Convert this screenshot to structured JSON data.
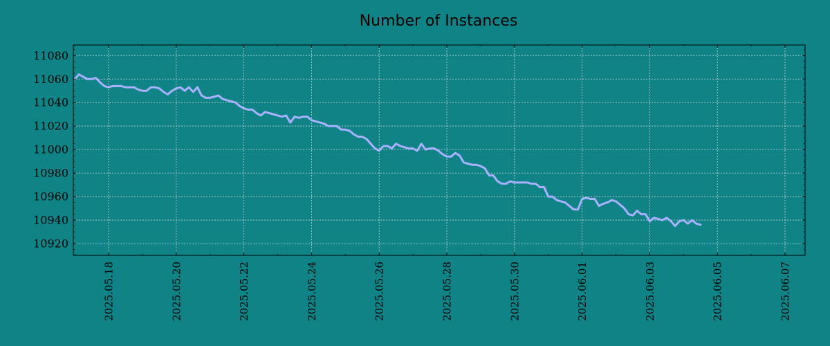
{
  "background_color": "#108386",
  "chart_data": {
    "type": "line",
    "title": "Number of Instances",
    "xlabel": "",
    "ylabel": "",
    "grid": true,
    "legend": "none",
    "x_range": [
      "2025.05.17",
      "2025.06.07"
    ],
    "ylim": [
      10910,
      11089
    ],
    "yticks": [
      10920,
      10940,
      10960,
      10980,
      11000,
      11020,
      11040,
      11060,
      11080
    ],
    "xticks": [
      "2025.05.18",
      "2025.05.20",
      "2025.05.22",
      "2025.05.24",
      "2025.05.26",
      "2025.05.28",
      "2025.05.30",
      "2025.06.01",
      "2025.06.03",
      "2025.06.05",
      "2025.06.07"
    ],
    "series": [
      {
        "color": "#a8b2ff",
        "points": [
          [
            "2025.05.17 00:00",
            11060
          ],
          [
            "2025.05.17 03:00",
            11064
          ],
          [
            "2025.05.17 06:00",
            11062
          ],
          [
            "2025.05.17 09:00",
            11060
          ],
          [
            "2025.05.17 12:00",
            11060
          ],
          [
            "2025.05.17 15:00",
            11061
          ],
          [
            "2025.05.17 18:00",
            11057
          ],
          [
            "2025.05.17 21:00",
            11054
          ],
          [
            "2025.05.18 00:00",
            11053
          ],
          [
            "2025.05.18 03:00",
            11054
          ],
          [
            "2025.05.18 06:00",
            11054
          ],
          [
            "2025.05.18 09:00",
            11054
          ],
          [
            "2025.05.18 12:00",
            11053
          ],
          [
            "2025.05.18 15:00",
            11053
          ],
          [
            "2025.05.18 18:00",
            11053
          ],
          [
            "2025.05.18 21:00",
            11051
          ],
          [
            "2025.05.19 00:00",
            11050
          ],
          [
            "2025.05.19 03:00",
            11050
          ],
          [
            "2025.05.19 06:00",
            11053
          ],
          [
            "2025.05.19 09:00",
            11053
          ],
          [
            "2025.05.19 12:00",
            11052
          ],
          [
            "2025.05.19 15:00",
            11049
          ],
          [
            "2025.05.19 18:00",
            11047
          ],
          [
            "2025.05.19 21:00",
            11050
          ],
          [
            "2025.05.20 00:00",
            11052
          ],
          [
            "2025.05.20 03:00",
            11053
          ],
          [
            "2025.05.20 06:00",
            11050
          ],
          [
            "2025.05.20 09:00",
            11053
          ],
          [
            "2025.05.20 12:00",
            11049
          ],
          [
            "2025.05.20 15:00",
            11053
          ],
          [
            "2025.05.20 18:00",
            11046
          ],
          [
            "2025.05.20 21:00",
            11044
          ],
          [
            "2025.05.21 00:00",
            11044
          ],
          [
            "2025.05.21 03:00",
            11045
          ],
          [
            "2025.05.21 06:00",
            11046
          ],
          [
            "2025.05.21 09:00",
            11043
          ],
          [
            "2025.05.21 12:00",
            11042
          ],
          [
            "2025.05.21 15:00",
            11041
          ],
          [
            "2025.05.21 18:00",
            11040
          ],
          [
            "2025.05.21 21:00",
            11037
          ],
          [
            "2025.05.22 00:00",
            11035
          ],
          [
            "2025.05.22 03:00",
            11034
          ],
          [
            "2025.05.22 06:00",
            11034
          ],
          [
            "2025.05.22 09:00",
            11031
          ],
          [
            "2025.05.22 12:00",
            11029
          ],
          [
            "2025.05.22 15:00",
            11032
          ],
          [
            "2025.05.22 18:00",
            11031
          ],
          [
            "2025.05.22 21:00",
            11030
          ],
          [
            "2025.05.23 00:00",
            11029
          ],
          [
            "2025.05.23 03:00",
            11028
          ],
          [
            "2025.05.23 06:00",
            11029
          ],
          [
            "2025.05.23 09:00",
            11023
          ],
          [
            "2025.05.23 12:00",
            11028
          ],
          [
            "2025.05.23 15:00",
            11027
          ],
          [
            "2025.05.23 18:00",
            11028
          ],
          [
            "2025.05.23 21:00",
            11028
          ],
          [
            "2025.05.24 00:00",
            11025
          ],
          [
            "2025.05.24 03:00",
            11024
          ],
          [
            "2025.05.24 06:00",
            11023
          ],
          [
            "2025.05.24 09:00",
            11022
          ],
          [
            "2025.05.24 12:00",
            11020
          ],
          [
            "2025.05.24 15:00",
            11020
          ],
          [
            "2025.05.24 18:00",
            11020
          ],
          [
            "2025.05.24 21:00",
            11017
          ],
          [
            "2025.05.25 00:00",
            11017
          ],
          [
            "2025.05.25 03:00",
            11016
          ],
          [
            "2025.05.25 06:00",
            11013
          ],
          [
            "2025.05.25 09:00",
            11011
          ],
          [
            "2025.05.25 12:00",
            11011
          ],
          [
            "2025.05.25 15:00",
            11009
          ],
          [
            "2025.05.25 18:00",
            11005
          ],
          [
            "2025.05.25 21:00",
            11001
          ],
          [
            "2025.05.26 00:00",
            10999
          ],
          [
            "2025.05.26 03:00",
            11003
          ],
          [
            "2025.05.26 06:00",
            11003
          ],
          [
            "2025.05.26 09:00",
            11001
          ],
          [
            "2025.05.26 12:00",
            11005
          ],
          [
            "2025.05.26 15:00",
            11003
          ],
          [
            "2025.05.26 18:00",
            11002
          ],
          [
            "2025.05.26 21:00",
            11001
          ],
          [
            "2025.05.27 00:00",
            11001
          ],
          [
            "2025.05.27 03:00",
            10999
          ],
          [
            "2025.05.27 06:00",
            11005
          ],
          [
            "2025.05.27 09:00",
            11000
          ],
          [
            "2025.05.27 12:00",
            11001
          ],
          [
            "2025.05.27 15:00",
            11001
          ],
          [
            "2025.05.27 18:00",
            10999
          ],
          [
            "2025.05.27 21:00",
            10996
          ],
          [
            "2025.05.28 00:00",
            10994
          ],
          [
            "2025.05.28 03:00",
            10994
          ],
          [
            "2025.05.28 06:00",
            10997
          ],
          [
            "2025.05.28 09:00",
            10995
          ],
          [
            "2025.05.28 12:00",
            10989
          ],
          [
            "2025.05.28 15:00",
            10988
          ],
          [
            "2025.05.28 18:00",
            10987
          ],
          [
            "2025.05.28 21:00",
            10987
          ],
          [
            "2025.05.29 00:00",
            10986
          ],
          [
            "2025.05.29 03:00",
            10984
          ],
          [
            "2025.05.29 06:00",
            10978
          ],
          [
            "2025.05.29 09:00",
            10978
          ],
          [
            "2025.05.29 12:00",
            10973
          ],
          [
            "2025.05.29 15:00",
            10971
          ],
          [
            "2025.05.29 18:00",
            10971
          ],
          [
            "2025.05.29 21:00",
            10973
          ],
          [
            "2025.05.30 00:00",
            10972
          ],
          [
            "2025.05.30 03:00",
            10972
          ],
          [
            "2025.05.30 06:00",
            10972
          ],
          [
            "2025.05.30 09:00",
            10972
          ],
          [
            "2025.05.30 12:00",
            10971
          ],
          [
            "2025.05.30 15:00",
            10971
          ],
          [
            "2025.05.30 18:00",
            10968
          ],
          [
            "2025.05.30 21:00",
            10968
          ],
          [
            "2025.05.31 00:00",
            10960
          ],
          [
            "2025.05.31 03:00",
            10960
          ],
          [
            "2025.05.31 06:00",
            10957
          ],
          [
            "2025.05.31 09:00",
            10956
          ],
          [
            "2025.05.31 12:00",
            10955
          ],
          [
            "2025.05.31 15:00",
            10952
          ],
          [
            "2025.05.31 18:00",
            10949
          ],
          [
            "2025.05.31 21:00",
            10949
          ],
          [
            "2025.06.01 00:00",
            10958
          ],
          [
            "2025.06.01 03:00",
            10959
          ],
          [
            "2025.06.01 06:00",
            10958
          ],
          [
            "2025.06.01 09:00",
            10958
          ],
          [
            "2025.06.01 12:00",
            10952
          ],
          [
            "2025.06.01 15:00",
            10954
          ],
          [
            "2025.06.01 18:00",
            10955
          ],
          [
            "2025.06.01 21:00",
            10957
          ],
          [
            "2025.06.02 00:00",
            10956
          ],
          [
            "2025.06.02 03:00",
            10953
          ],
          [
            "2025.06.02 06:00",
            10950
          ],
          [
            "2025.06.02 09:00",
            10945
          ],
          [
            "2025.06.02 12:00",
            10944
          ],
          [
            "2025.06.02 15:00",
            10948
          ],
          [
            "2025.06.02 18:00",
            10945
          ],
          [
            "2025.06.02 21:00",
            10945
          ],
          [
            "2025.06.03 00:00",
            10939
          ],
          [
            "2025.06.03 03:00",
            10942
          ],
          [
            "2025.06.03 06:00",
            10941
          ],
          [
            "2025.06.03 09:00",
            10940
          ],
          [
            "2025.06.03 12:00",
            10942
          ],
          [
            "2025.06.03 15:00",
            10939
          ],
          [
            "2025.06.03 18:00",
            10935
          ],
          [
            "2025.06.03 21:00",
            10939
          ],
          [
            "2025.06.04 00:00",
            10940
          ],
          [
            "2025.06.04 03:00",
            10937
          ],
          [
            "2025.06.04 06:00",
            10940
          ],
          [
            "2025.06.04 09:00",
            10937
          ],
          [
            "2025.06.04 12:00",
            10936
          ]
        ]
      }
    ]
  }
}
